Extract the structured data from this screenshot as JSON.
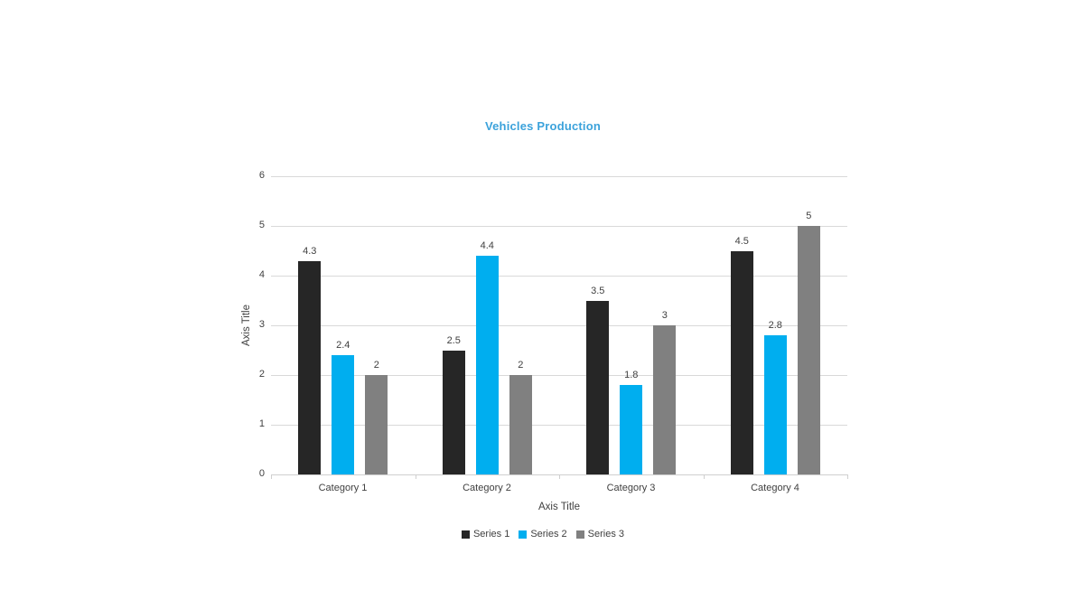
{
  "title": "Vehicles Production",
  "title_color": "#3ba2db",
  "chart_data": {
    "type": "bar",
    "title": "Vehicles Production",
    "categories": [
      "Category 1",
      "Category 2",
      "Category 3",
      "Category 4"
    ],
    "series": [
      {
        "name": "Series 1",
        "color": "#262626",
        "values": [
          4.3,
          2.5,
          3.5,
          4.5
        ]
      },
      {
        "name": "Series 2",
        "color": "#00aeef",
        "values": [
          2.4,
          4.4,
          1.8,
          2.8
        ]
      },
      {
        "name": "Series 3",
        "color": "#808080",
        "values": [
          2,
          2,
          3,
          5
        ]
      }
    ],
    "xlabel": "Axis Title",
    "ylabel": "Axis Title",
    "ylim": [
      0,
      6
    ],
    "yticks": [
      0,
      1,
      2,
      3,
      4,
      5,
      6
    ],
    "grid": true,
    "data_labels": true,
    "legend_position": "bottom",
    "gridline_color": "#d9d9d9",
    "text_color": "#404040"
  }
}
